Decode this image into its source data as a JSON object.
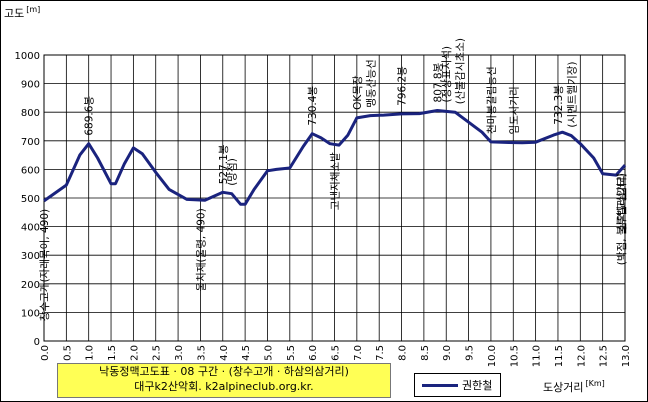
{
  "chart_data": {
    "type": "line",
    "title": "낙동정맥고도표 · 08 구간 · (창수고개 · 하삼의삼거리)",
    "subtitle": "대구k2산악회. k2alpineclub.org.kr.",
    "ylabel": "고도",
    "ylabel_unit": "[m]",
    "xlabel": "도상거리",
    "xlabel_unit": "[Km]",
    "xlim": [
      0,
      13
    ],
    "ylim": [
      0,
      1000
    ],
    "x_ticks": [
      "0.0",
      "0.5",
      "1.0",
      "1.5",
      "2.0",
      "2.5",
      "3.0",
      "3.5",
      "4.0",
      "4.5",
      "5.0",
      "5.5",
      "6.0",
      "6.5",
      "7.0",
      "7.5",
      "8.0",
      "8.5",
      "9.0",
      "9.5",
      "10.0",
      "10.5",
      "11.0",
      "11.5",
      "12.0",
      "12.5",
      "13.0"
    ],
    "y_ticks": [
      "0",
      "100",
      "200",
      "300",
      "400",
      "500",
      "600",
      "700",
      "800",
      "900",
      "1000"
    ],
    "grid": true,
    "legend_position": "bottom-center",
    "series": [
      {
        "name": "권한철",
        "color": "#1a237e",
        "points": [
          [
            0,
            490
          ],
          [
            0.5,
            545
          ],
          [
            0.8,
            650
          ],
          [
            1.0,
            690
          ],
          [
            1.2,
            640
          ],
          [
            1.5,
            550
          ],
          [
            1.6,
            550
          ],
          [
            1.8,
            620
          ],
          [
            2.0,
            675
          ],
          [
            2.2,
            655
          ],
          [
            2.5,
            590
          ],
          [
            2.8,
            530
          ],
          [
            3.2,
            495
          ],
          [
            3.6,
            492
          ],
          [
            4.0,
            520
          ],
          [
            4.2,
            515
          ],
          [
            4.4,
            478
          ],
          [
            4.5,
            478
          ],
          [
            4.7,
            530
          ],
          [
            5.0,
            595
          ],
          [
            5.2,
            600
          ],
          [
            5.5,
            605
          ],
          [
            5.8,
            680
          ],
          [
            6.0,
            725
          ],
          [
            6.2,
            710
          ],
          [
            6.4,
            690
          ],
          [
            6.6,
            685
          ],
          [
            6.8,
            720
          ],
          [
            7.0,
            780
          ],
          [
            7.3,
            788
          ],
          [
            7.6,
            790
          ],
          [
            8.0,
            794
          ],
          [
            8.4,
            795
          ],
          [
            8.8,
            806
          ],
          [
            9.2,
            800
          ],
          [
            9.5,
            765
          ],
          [
            9.8,
            730
          ],
          [
            10.0,
            696
          ],
          [
            10.4,
            694
          ],
          [
            10.7,
            693
          ],
          [
            11.0,
            695
          ],
          [
            11.4,
            720
          ],
          [
            11.6,
            730
          ],
          [
            11.8,
            718
          ],
          [
            12.0,
            690
          ],
          [
            12.3,
            640
          ],
          [
            12.5,
            585
          ],
          [
            12.8,
            580
          ],
          [
            13.0,
            615
          ]
        ]
      }
    ],
    "annotations": [
      {
        "x": 0.0,
        "y": 490,
        "text": "창수고개(자래목이, 490)",
        "anchor": "below"
      },
      {
        "x": 1.0,
        "y": 690,
        "text": "689.6봉",
        "anchor": "above"
      },
      {
        "x": 3.5,
        "y": 492,
        "text": "울치재(울령, 490)",
        "anchor": "below"
      },
      {
        "x": 4.0,
        "y": 520,
        "text": "527.1봉",
        "anchor": "above"
      },
      {
        "x": 4.2,
        "y": 515,
        "text": "(망점)",
        "anchor": "above"
      },
      {
        "x": 6.0,
        "y": 725,
        "text": "730.4봉",
        "anchor": "above"
      },
      {
        "x": 6.5,
        "y": 688,
        "text": "고낸지채소밭",
        "anchor": "below"
      },
      {
        "x": 7.0,
        "y": 780,
        "text": "OK목장",
        "anchor": "above"
      },
      {
        "x": 7.3,
        "y": 788,
        "text": "맹동산능선",
        "anchor": "above"
      },
      {
        "x": 8.0,
        "y": 794,
        "text": "796.2봉",
        "anchor": "above"
      },
      {
        "x": 8.8,
        "y": 806,
        "text": "807.8봉",
        "anchor": "above"
      },
      {
        "x": 9.0,
        "y": 806,
        "text": "(정상표지석)",
        "anchor": "above"
      },
      {
        "x": 9.3,
        "y": 800,
        "text": "(산불감시초소)",
        "anchor": "above"
      },
      {
        "x": 10.0,
        "y": 696,
        "text": "천마봉갈림능선",
        "anchor": "above"
      },
      {
        "x": 10.5,
        "y": 694,
        "text": "임도사거리",
        "anchor": "above"
      },
      {
        "x": 11.5,
        "y": 728,
        "text": "732.3봉",
        "anchor": "above"
      },
      {
        "x": 11.8,
        "y": 718,
        "text": "(시멘트헬기장)",
        "anchor": "above"
      },
      {
        "x": 13.0,
        "y": 615,
        "text": "삼의교삼거리",
        "anchor": "below"
      },
      {
        "x": 13.3,
        "y": 615,
        "text": "(박점, 불루벨리입터)",
        "anchor": "below"
      }
    ]
  }
}
